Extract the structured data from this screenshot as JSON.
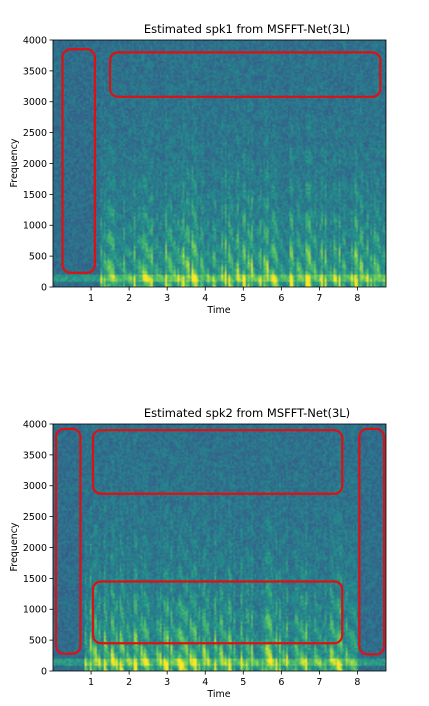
{
  "chart_data": [
    {
      "type": "heatmap",
      "title": "Estimated spk1 from MSFFT-Net(3L)",
      "xlabel": "Time",
      "ylabel": "Frequency",
      "xlim": [
        0,
        8.75
      ],
      "ylim": [
        0,
        4000
      ],
      "xticks": [
        "1",
        "2",
        "3",
        "4",
        "5",
        "6",
        "7",
        "8"
      ],
      "yticks": [
        "0",
        "500",
        "1000",
        "1500",
        "2000",
        "2500",
        "3000",
        "3500",
        "4000"
      ],
      "colormap": "viridis",
      "grid": false,
      "annotations": [
        {
          "shape": "rounded-rect",
          "color": "#e01010",
          "x": [
            0.25,
            1.1
          ],
          "y": [
            230,
            3850
          ]
        },
        {
          "shape": "rounded-rect",
          "color": "#e01010",
          "x": [
            1.5,
            8.6
          ],
          "y": [
            3080,
            3800
          ]
        }
      ]
    },
    {
      "type": "heatmap",
      "title": "Estimated spk2 from MSFFT-Net(3L)",
      "xlabel": "Time",
      "ylabel": "Frequency",
      "xlim": [
        0,
        8.75
      ],
      "ylim": [
        0,
        4000
      ],
      "xticks": [
        "1",
        "2",
        "3",
        "4",
        "5",
        "6",
        "7",
        "8"
      ],
      "yticks": [
        "0",
        "500",
        "1000",
        "1500",
        "2000",
        "2500",
        "3000",
        "3500",
        "4000"
      ],
      "colormap": "viridis",
      "grid": false,
      "annotations": [
        {
          "shape": "rounded-rect",
          "color": "#e01010",
          "x": [
            0.08,
            0.72
          ],
          "y": [
            280,
            3920
          ]
        },
        {
          "shape": "rounded-rect",
          "color": "#e01010",
          "x": [
            1.05,
            7.6
          ],
          "y": [
            2870,
            3900
          ]
        },
        {
          "shape": "rounded-rect",
          "color": "#e01010",
          "x": [
            1.05,
            7.6
          ],
          "y": [
            450,
            1450
          ]
        },
        {
          "shape": "rounded-rect",
          "color": "#e01010",
          "x": [
            8.05,
            8.7
          ],
          "y": [
            270,
            3920
          ]
        }
      ]
    }
  ]
}
